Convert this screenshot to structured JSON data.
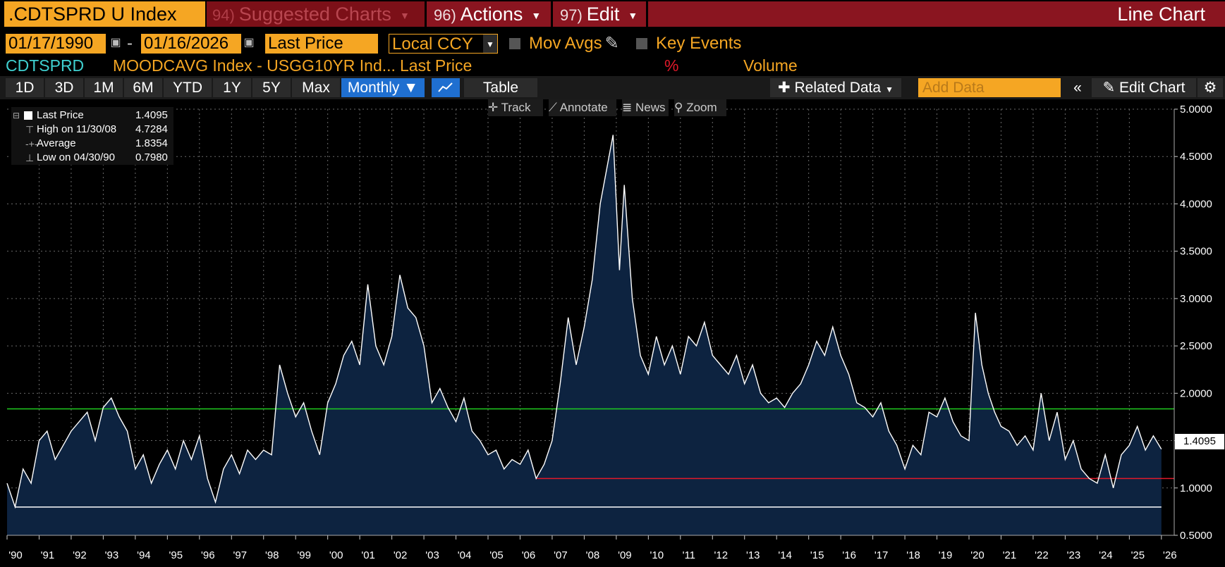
{
  "header": {
    "ticker": ".CDTSPRD U Index",
    "suggested": {
      "num": "94)",
      "label": "Suggested Charts"
    },
    "actions": {
      "num": "96)",
      "label": "Actions"
    },
    "edit": {
      "num": "97)",
      "label": "Edit"
    },
    "chart_type": "Line Chart"
  },
  "controls": {
    "start_date": "01/17/1990",
    "date_sep": "-",
    "end_date": "01/16/2026",
    "field": "Last Price",
    "currency": "Local CCY",
    "mov_avgs": "Mov Avgs",
    "key_events": "Key Events"
  },
  "series_row": {
    "short": "CDTSPRD",
    "desc": "MOODCAVG Index - USGG10YR Ind...",
    "field": "Last Price",
    "pct": "%",
    "volume": "Volume"
  },
  "periods": [
    "1D",
    "3D",
    "1M",
    "6M",
    "YTD",
    "1Y",
    "5Y",
    "Max"
  ],
  "toolbar": {
    "frequency": "Monthly",
    "table": "Table",
    "related": "Related Data",
    "add_data_placeholder": "Add Data",
    "edit_chart": "Edit Chart"
  },
  "tools": [
    "Track",
    "Annotate",
    "News",
    "Zoom"
  ],
  "legend": {
    "last": {
      "label": "Last Price",
      "value": "1.4095"
    },
    "high": {
      "label": "High on 11/30/08",
      "value": "4.7284"
    },
    "avg": {
      "label": "Average",
      "value": "1.8354"
    },
    "low": {
      "label": "Low on 04/30/90",
      "value": "0.7980"
    }
  },
  "last_value_label": "1.4095",
  "colors": {
    "accent": "#f5a623",
    "menu_red": "#8a1520",
    "area": "#0d2340",
    "avg_line": "#1fcc1f",
    "ref_line": "#e0192a"
  },
  "chart_data": {
    "type": "area",
    "title": "CDTSPRD",
    "frequency": "monthly",
    "xlabel": "",
    "ylabel": "",
    "ylim": [
      0.5,
      5.0
    ],
    "yticks": [
      "0.5000",
      "1.0000",
      "1.5000",
      "2.0000",
      "2.5000",
      "3.0000",
      "3.5000",
      "4.0000",
      "4.5000",
      "5.0000"
    ],
    "xticks": [
      "'90",
      "'91",
      "'92",
      "'93",
      "'94",
      "'95",
      "'96",
      "'97",
      "'98",
      "'99",
      "'00",
      "'01",
      "'02",
      "'03",
      "'04",
      "'05",
      "'06",
      "'07",
      "'08",
      "'09",
      "'10",
      "'11",
      "'12",
      "'13",
      "'14",
      "'15",
      "'16",
      "'17",
      "'18",
      "'19",
      "'20",
      "'21",
      "'22",
      "'23",
      "'24",
      "'25",
      "'26"
    ],
    "grid": true,
    "average": 1.8354,
    "high": {
      "date": "11/30/08",
      "value": 4.7284
    },
    "low": {
      "date": "04/30/90",
      "value": 0.798
    },
    "reference_line": {
      "value": 1.1,
      "from": 2006.5,
      "to": 2026.0
    },
    "last": 1.4095,
    "points": [
      [
        1990.0,
        1.05
      ],
      [
        1990.25,
        0.8
      ],
      [
        1990.5,
        1.2
      ],
      [
        1990.75,
        1.05
      ],
      [
        1991.0,
        1.5
      ],
      [
        1991.25,
        1.6
      ],
      [
        1991.5,
        1.3
      ],
      [
        1991.75,
        1.45
      ],
      [
        1992.0,
        1.6
      ],
      [
        1992.5,
        1.8
      ],
      [
        1992.75,
        1.5
      ],
      [
        1993.0,
        1.85
      ],
      [
        1993.25,
        1.95
      ],
      [
        1993.5,
        1.75
      ],
      [
        1993.75,
        1.6
      ],
      [
        1994.0,
        1.2
      ],
      [
        1994.25,
        1.35
      ],
      [
        1994.5,
        1.05
      ],
      [
        1994.75,
        1.25
      ],
      [
        1995.0,
        1.4
      ],
      [
        1995.25,
        1.2
      ],
      [
        1995.5,
        1.5
      ],
      [
        1995.75,
        1.3
      ],
      [
        1996.0,
        1.55
      ],
      [
        1996.25,
        1.1
      ],
      [
        1996.5,
        0.85
      ],
      [
        1996.75,
        1.2
      ],
      [
        1997.0,
        1.35
      ],
      [
        1997.25,
        1.15
      ],
      [
        1997.5,
        1.4
      ],
      [
        1997.75,
        1.3
      ],
      [
        1998.0,
        1.4
      ],
      [
        1998.25,
        1.35
      ],
      [
        1998.5,
        2.3
      ],
      [
        1998.75,
        2.0
      ],
      [
        1999.0,
        1.75
      ],
      [
        1999.25,
        1.9
      ],
      [
        1999.5,
        1.6
      ],
      [
        1999.75,
        1.35
      ],
      [
        2000.0,
        1.9
      ],
      [
        2000.25,
        2.1
      ],
      [
        2000.5,
        2.4
      ],
      [
        2000.75,
        2.55
      ],
      [
        2001.0,
        2.3
      ],
      [
        2001.25,
        3.15
      ],
      [
        2001.5,
        2.5
      ],
      [
        2001.75,
        2.3
      ],
      [
        2002.0,
        2.6
      ],
      [
        2002.25,
        3.25
      ],
      [
        2002.5,
        2.9
      ],
      [
        2002.75,
        2.8
      ],
      [
        2003.0,
        2.5
      ],
      [
        2003.25,
        1.9
      ],
      [
        2003.5,
        2.05
      ],
      [
        2003.75,
        1.85
      ],
      [
        2004.0,
        1.7
      ],
      [
        2004.25,
        1.95
      ],
      [
        2004.5,
        1.6
      ],
      [
        2004.75,
        1.5
      ],
      [
        2005.0,
        1.35
      ],
      [
        2005.25,
        1.4
      ],
      [
        2005.5,
        1.2
      ],
      [
        2005.75,
        1.3
      ],
      [
        2006.0,
        1.25
      ],
      [
        2006.25,
        1.4
      ],
      [
        2006.5,
        1.1
      ],
      [
        2006.75,
        1.25
      ],
      [
        2007.0,
        1.5
      ],
      [
        2007.25,
        2.1
      ],
      [
        2007.5,
        2.8
      ],
      [
        2007.75,
        2.3
      ],
      [
        2008.0,
        2.7
      ],
      [
        2008.25,
        3.2
      ],
      [
        2008.5,
        4.0
      ],
      [
        2008.9,
        4.7284
      ],
      [
        2009.1,
        3.3
      ],
      [
        2009.25,
        4.2
      ],
      [
        2009.5,
        3.0
      ],
      [
        2009.75,
        2.4
      ],
      [
        2010.0,
        2.2
      ],
      [
        2010.25,
        2.6
      ],
      [
        2010.5,
        2.3
      ],
      [
        2010.75,
        2.5
      ],
      [
        2011.0,
        2.2
      ],
      [
        2011.25,
        2.6
      ],
      [
        2011.5,
        2.5
      ],
      [
        2011.75,
        2.75
      ],
      [
        2012.0,
        2.4
      ],
      [
        2012.25,
        2.3
      ],
      [
        2012.5,
        2.2
      ],
      [
        2012.75,
        2.4
      ],
      [
        2013.0,
        2.1
      ],
      [
        2013.25,
        2.3
      ],
      [
        2013.5,
        2.0
      ],
      [
        2013.75,
        1.9
      ],
      [
        2014.0,
        1.95
      ],
      [
        2014.25,
        1.85
      ],
      [
        2014.5,
        2.0
      ],
      [
        2014.75,
        2.1
      ],
      [
        2015.0,
        2.3
      ],
      [
        2015.25,
        2.55
      ],
      [
        2015.5,
        2.4
      ],
      [
        2015.75,
        2.7
      ],
      [
        2016.0,
        2.4
      ],
      [
        2016.25,
        2.2
      ],
      [
        2016.5,
        1.9
      ],
      [
        2016.75,
        1.85
      ],
      [
        2017.0,
        1.75
      ],
      [
        2017.25,
        1.9
      ],
      [
        2017.5,
        1.6
      ],
      [
        2017.75,
        1.45
      ],
      [
        2018.0,
        1.2
      ],
      [
        2018.25,
        1.45
      ],
      [
        2018.5,
        1.35
      ],
      [
        2018.75,
        1.8
      ],
      [
        2019.0,
        1.75
      ],
      [
        2019.25,
        1.95
      ],
      [
        2019.5,
        1.7
      ],
      [
        2019.75,
        1.55
      ],
      [
        2020.0,
        1.5
      ],
      [
        2020.2,
        2.85
      ],
      [
        2020.4,
        2.3
      ],
      [
        2020.6,
        2.0
      ],
      [
        2020.8,
        1.8
      ],
      [
        2021.0,
        1.65
      ],
      [
        2021.25,
        1.6
      ],
      [
        2021.5,
        1.45
      ],
      [
        2021.75,
        1.55
      ],
      [
        2022.0,
        1.4
      ],
      [
        2022.25,
        2.0
      ],
      [
        2022.5,
        1.5
      ],
      [
        2022.75,
        1.8
      ],
      [
        2023.0,
        1.3
      ],
      [
        2023.25,
        1.5
      ],
      [
        2023.5,
        1.2
      ],
      [
        2023.75,
        1.1
      ],
      [
        2024.0,
        1.05
      ],
      [
        2024.25,
        1.35
      ],
      [
        2024.5,
        1.0
      ],
      [
        2024.75,
        1.35
      ],
      [
        2025.0,
        1.45
      ],
      [
        2025.25,
        1.65
      ],
      [
        2025.5,
        1.4
      ],
      [
        2025.75,
        1.55
      ],
      [
        2026.0,
        1.4095
      ]
    ]
  }
}
